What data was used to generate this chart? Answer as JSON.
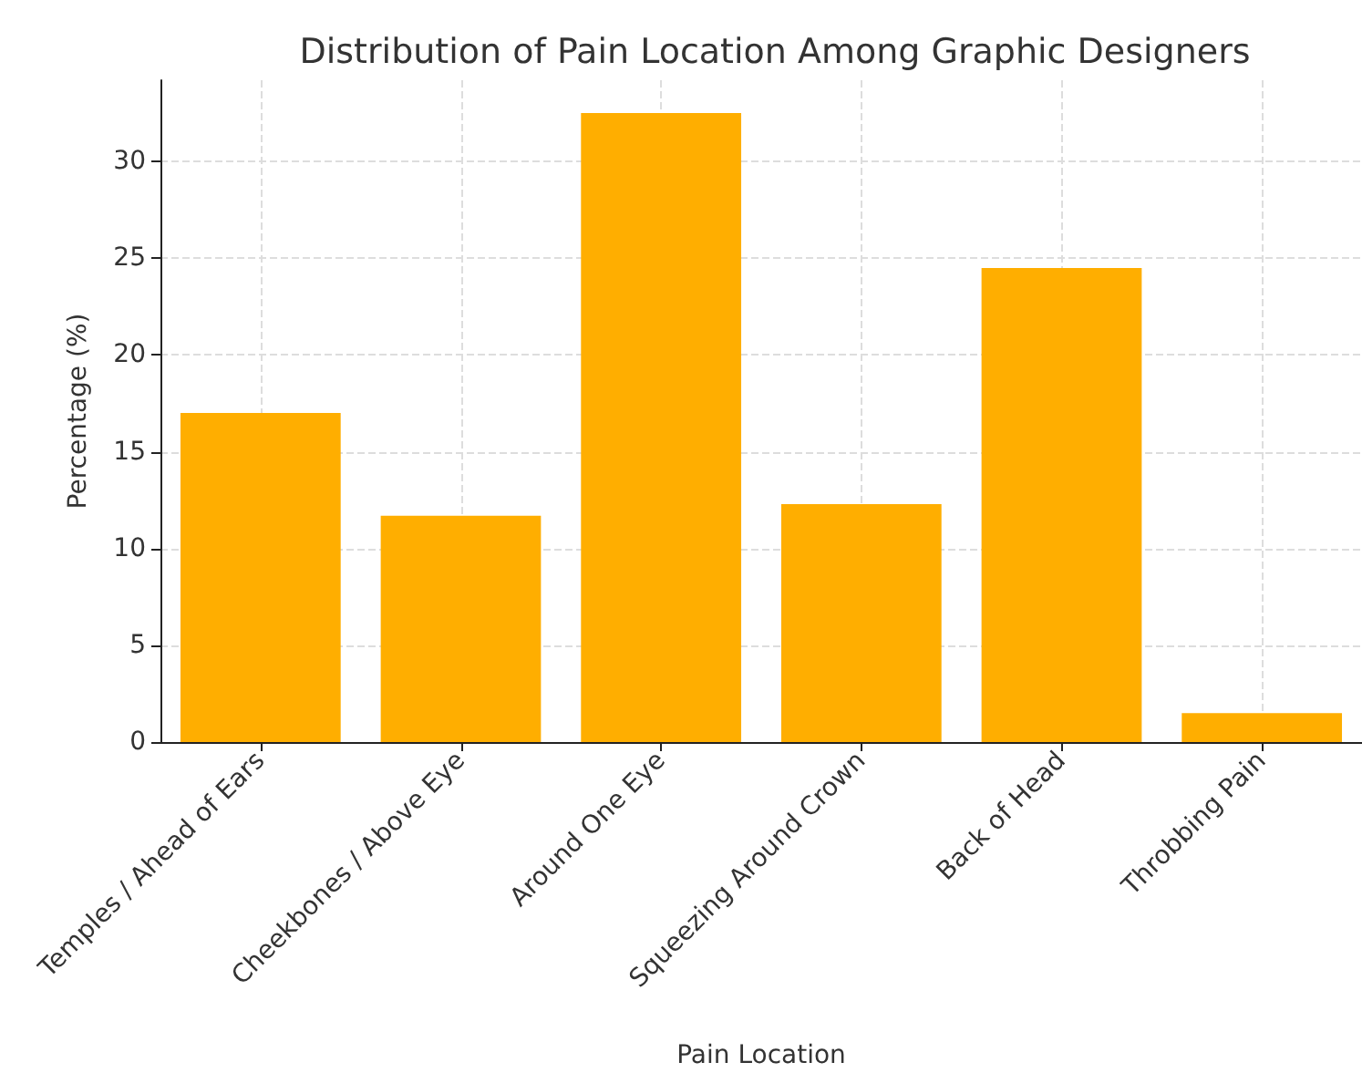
{
  "chart_data": {
    "type": "bar",
    "title": "Distribution of Pain Location Among Graphic Designers",
    "xlabel": "Pain Location",
    "ylabel": "Percentage (%)",
    "categories": [
      "Temples / Ahead of Ears",
      "Cheekbones / Above Eye",
      "Around One Eye",
      "Squeezing Around Crown",
      "Back of Head",
      "Throbbing Pain"
    ],
    "values": [
      17.0,
      11.7,
      32.5,
      12.3,
      24.5,
      1.5
    ],
    "color": "#ffae00",
    "ylim": [
      0,
      34.2
    ],
    "yticks": [
      0,
      5,
      10,
      15,
      20,
      25,
      30
    ],
    "grid": true
  }
}
